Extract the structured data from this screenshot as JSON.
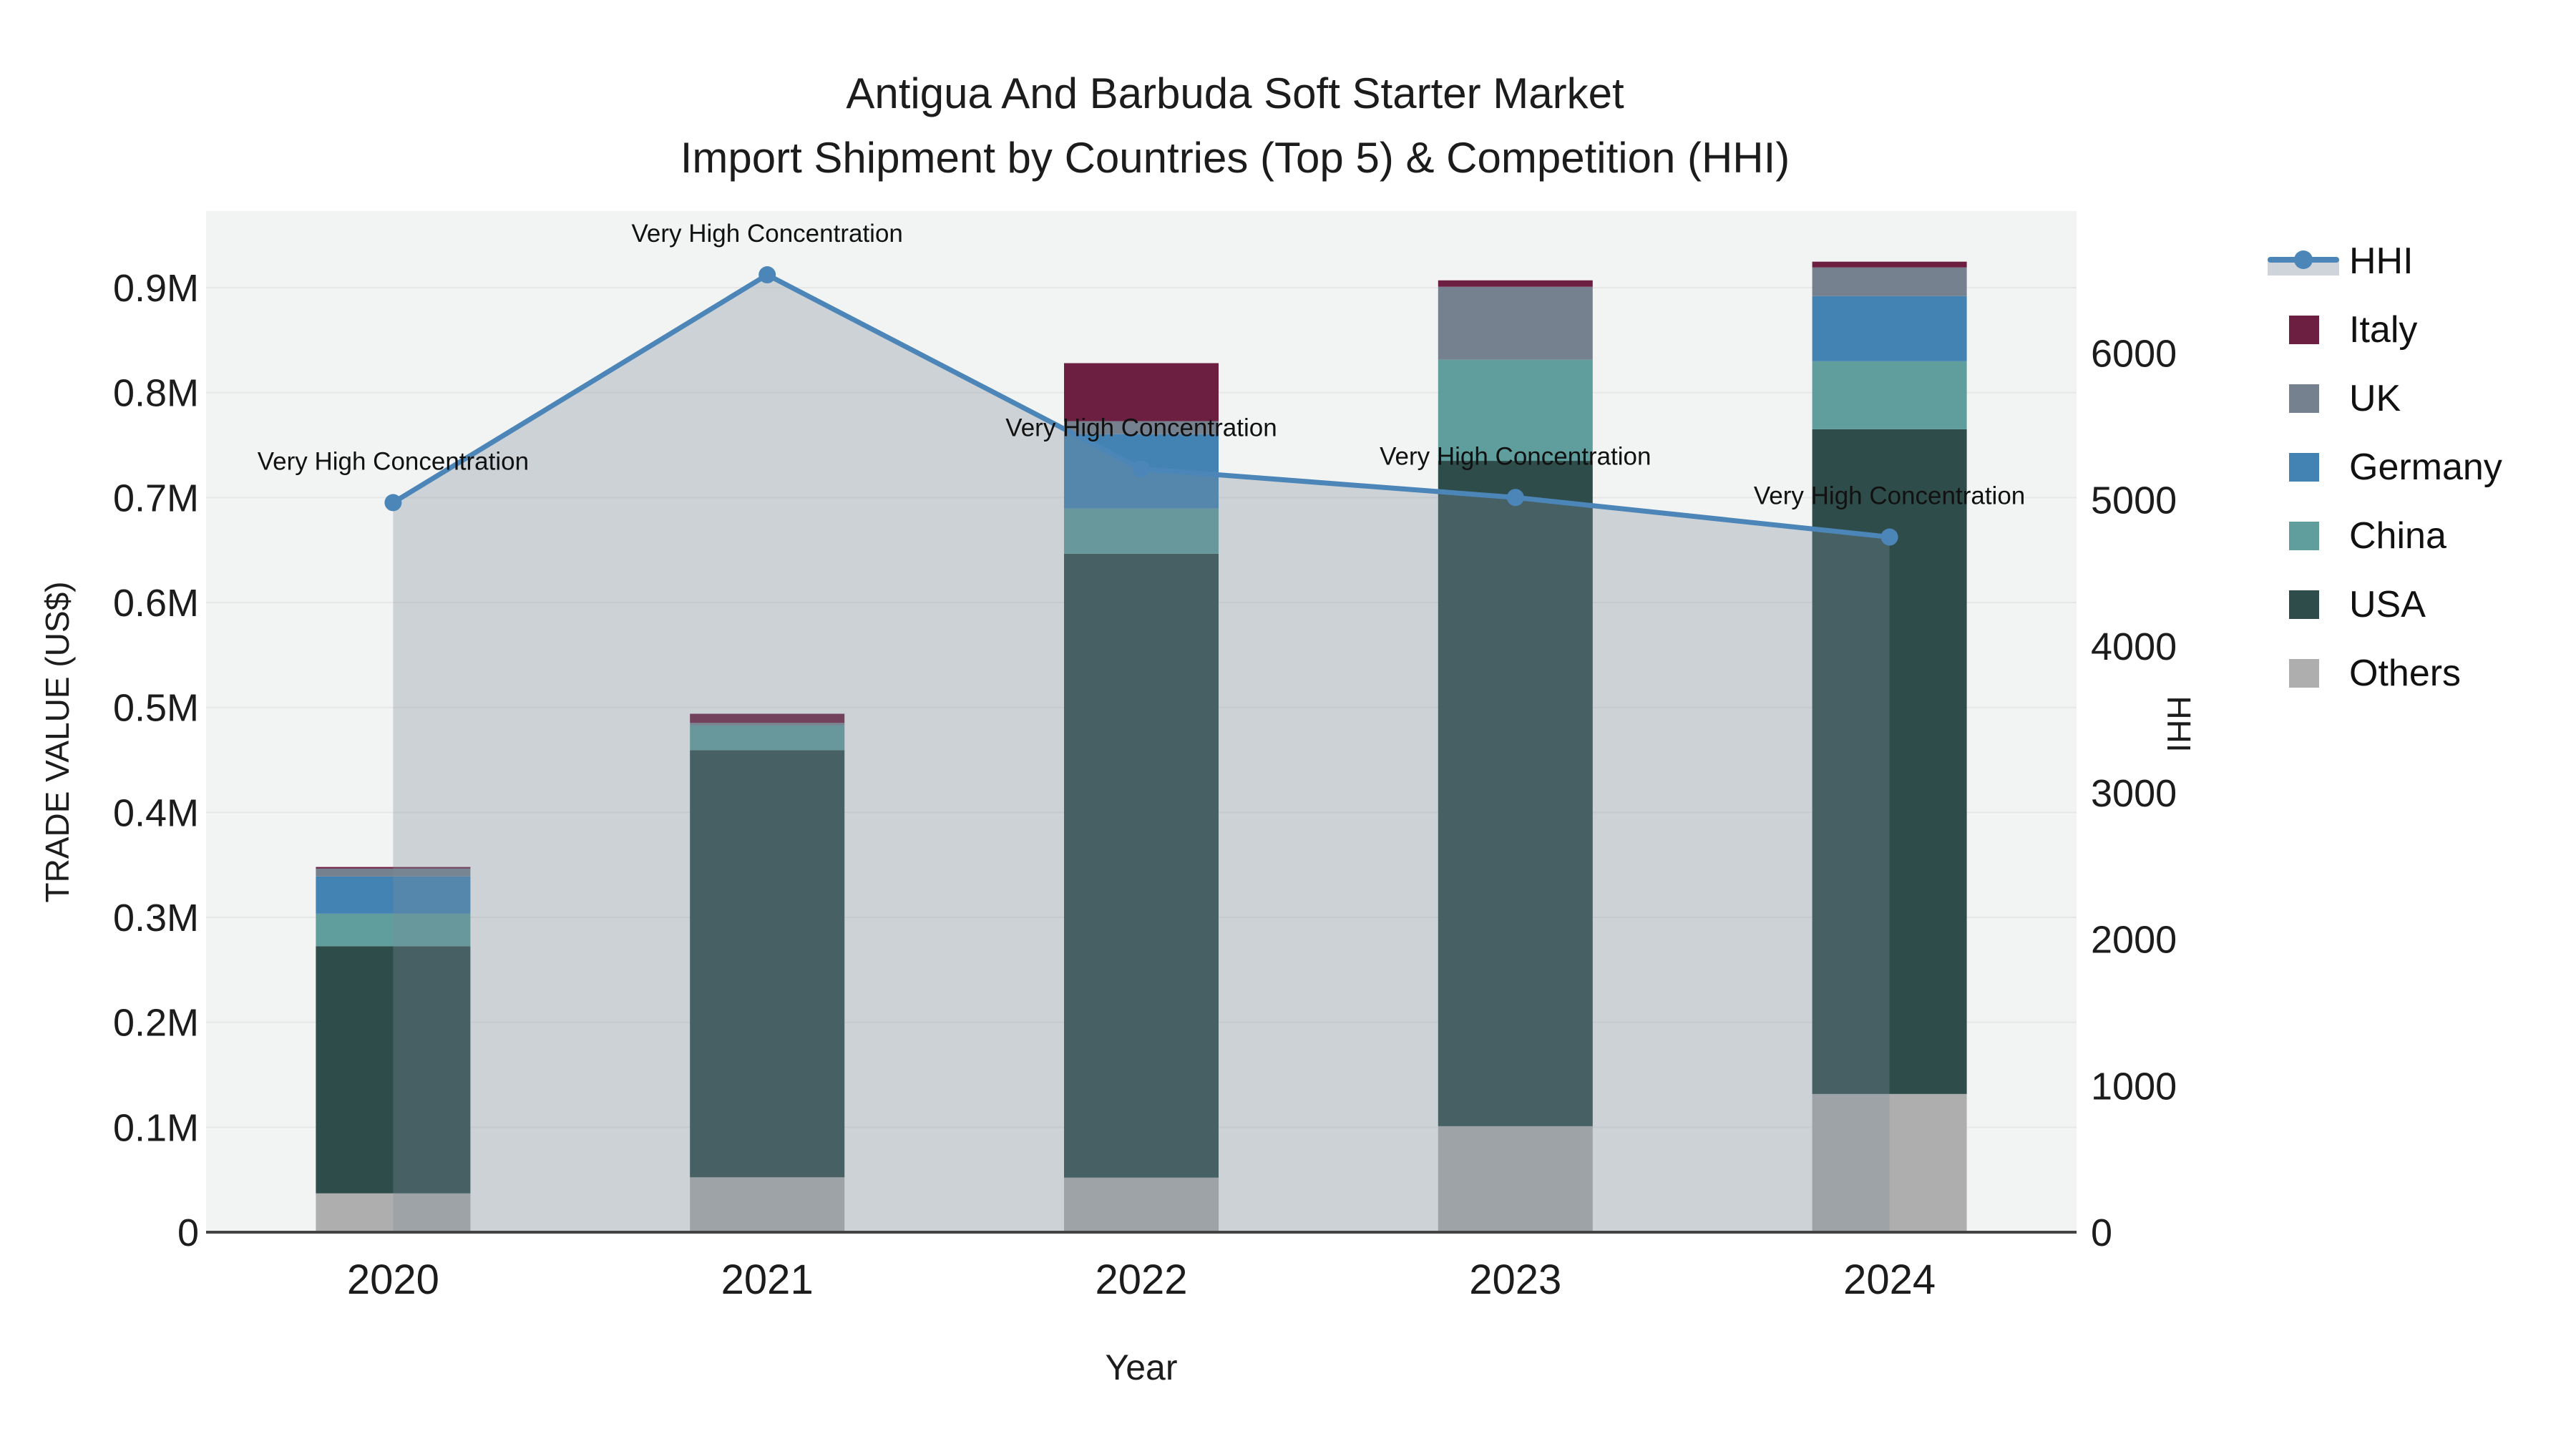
{
  "chart_data": {
    "type": "combo: stacked bar (trade value) + line with area fill (HHI)",
    "title": "Antigua And Barbuda Soft Starter Market",
    "subtitle": "Import Shipment by Countries (Top 5) & Competition (HHI)",
    "xlabel": "Year",
    "ylabel_left": "TRADE VALUE (US$)",
    "ylabel_right": "HHI",
    "categories": [
      "2020",
      "2021",
      "2022",
      "2023",
      "2024"
    ],
    "bar_series": [
      {
        "name": "Others",
        "color": "#aeaeae",
        "values": [
          37000,
          52300,
          52000,
          101000,
          131700
        ]
      },
      {
        "name": "USA",
        "color": "#2e4c4a",
        "values": [
          235500,
          407000,
          594500,
          634000,
          633400
        ]
      },
      {
        "name": "China",
        "color": "#5f9e9c",
        "values": [
          31000,
          23500,
          43000,
          96300,
          64800
        ]
      },
      {
        "name": "Germany",
        "color": "#4383b4",
        "values": [
          35500,
          0,
          71000,
          0,
          62100
        ]
      },
      {
        "name": "UK",
        "color": "#75818f",
        "values": [
          7500,
          2500,
          12300,
          69600,
          27300
        ]
      },
      {
        "name": "Italy",
        "color": "#6d1f42",
        "values": [
          1500,
          8700,
          55300,
          6100,
          5500
        ]
      }
    ],
    "line_series": {
      "name": "HHI",
      "color": "#4c86b8",
      "area_fill": "rgba(125,140,152,0.32)",
      "values": [
        4980,
        6535,
        5210,
        5015,
        4745
      ]
    },
    "annotation_text": "Very High Concentration",
    "annotated_points": [
      0,
      1,
      2,
      3,
      4
    ],
    "y_ticks_left": {
      "labels": [
        "0",
        "0.1M",
        "0.2M",
        "0.3M",
        "0.4M",
        "0.5M",
        "0.6M",
        "0.7M",
        "0.8M",
        "0.9M"
      ],
      "values": [
        0,
        100000,
        200000,
        300000,
        400000,
        500000,
        600000,
        700000,
        800000,
        900000
      ]
    },
    "y_ticks_right": {
      "labels": [
        "0",
        "1000",
        "2000",
        "3000",
        "4000",
        "5000",
        "6000"
      ],
      "values": [
        0,
        1000,
        2000,
        3000,
        4000,
        5000,
        6000
      ]
    },
    "ylim_left": [
      0,
      973000
    ],
    "ylim_right": [
      0,
      6970
    ],
    "grid": true,
    "legend_position": "right",
    "legend": [
      {
        "label": "HHI",
        "type": "line",
        "color": "#4c86b8"
      },
      {
        "label": "Italy",
        "type": "swatch",
        "color": "#6d1f42"
      },
      {
        "label": "UK",
        "type": "swatch",
        "color": "#75818f"
      },
      {
        "label": "Germany",
        "type": "swatch",
        "color": "#4383b4"
      },
      {
        "label": "China",
        "type": "swatch",
        "color": "#5f9e9c"
      },
      {
        "label": "USA",
        "type": "swatch",
        "color": "#2e4c4a"
      },
      {
        "label": "Others",
        "type": "swatch",
        "color": "#aeaeae"
      }
    ],
    "colors": {
      "plot_bg": "#f2f3f3",
      "gridline": "#e7e7e7",
      "axis_line": "#444444",
      "tick_text": "#1c1c1c",
      "annotation_text": "#111111"
    }
  }
}
